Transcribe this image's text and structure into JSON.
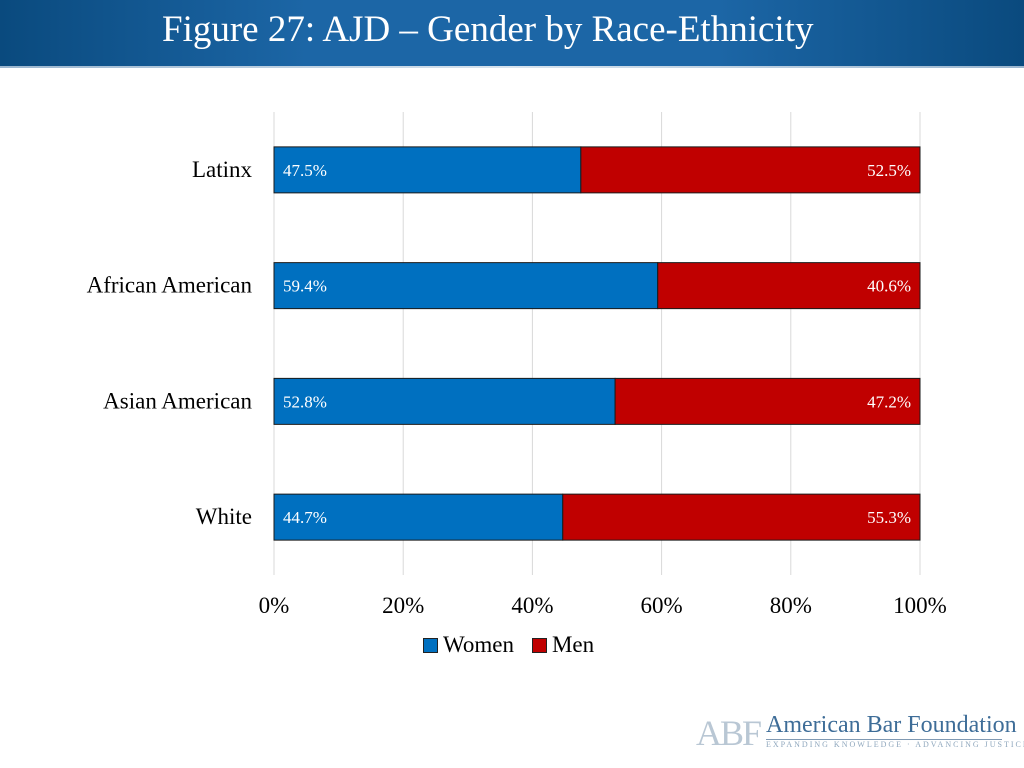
{
  "header": {
    "title": "Figure 27: AJD – Gender by Race-Ethnicity"
  },
  "colors": {
    "header_bg": "#1c66a6",
    "women": "#0070c0",
    "men": "#c00000"
  },
  "chart_data": {
    "type": "bar",
    "orientation": "horizontal",
    "stacked": "percent",
    "title": "Figure 27: AJD – Gender by Race-Ethnicity",
    "categories": [
      "Latinx",
      "African American",
      "Asian American",
      "White"
    ],
    "series": [
      {
        "name": "Women",
        "values": [
          47.5,
          59.4,
          52.8,
          44.7
        ],
        "labels": [
          "47.5%",
          "59.4%",
          "52.8%",
          "44.7%"
        ]
      },
      {
        "name": "Men",
        "values": [
          52.5,
          40.6,
          47.2,
          55.3
        ],
        "labels": [
          "52.5%",
          "40.6%",
          "47.2%",
          "55.3%"
        ]
      }
    ],
    "xlim": [
      0,
      100
    ],
    "xticks": [
      "0%",
      "20%",
      "40%",
      "60%",
      "80%",
      "100%"
    ],
    "grid": true,
    "legend": "bottom-center"
  },
  "legend": {
    "women": "Women",
    "men": "Men"
  },
  "logo": {
    "mark": "ABF",
    "name": "American Bar Foundation",
    "tagline": "EXPANDING KNOWLEDGE · ADVANCING JUSTICE"
  }
}
